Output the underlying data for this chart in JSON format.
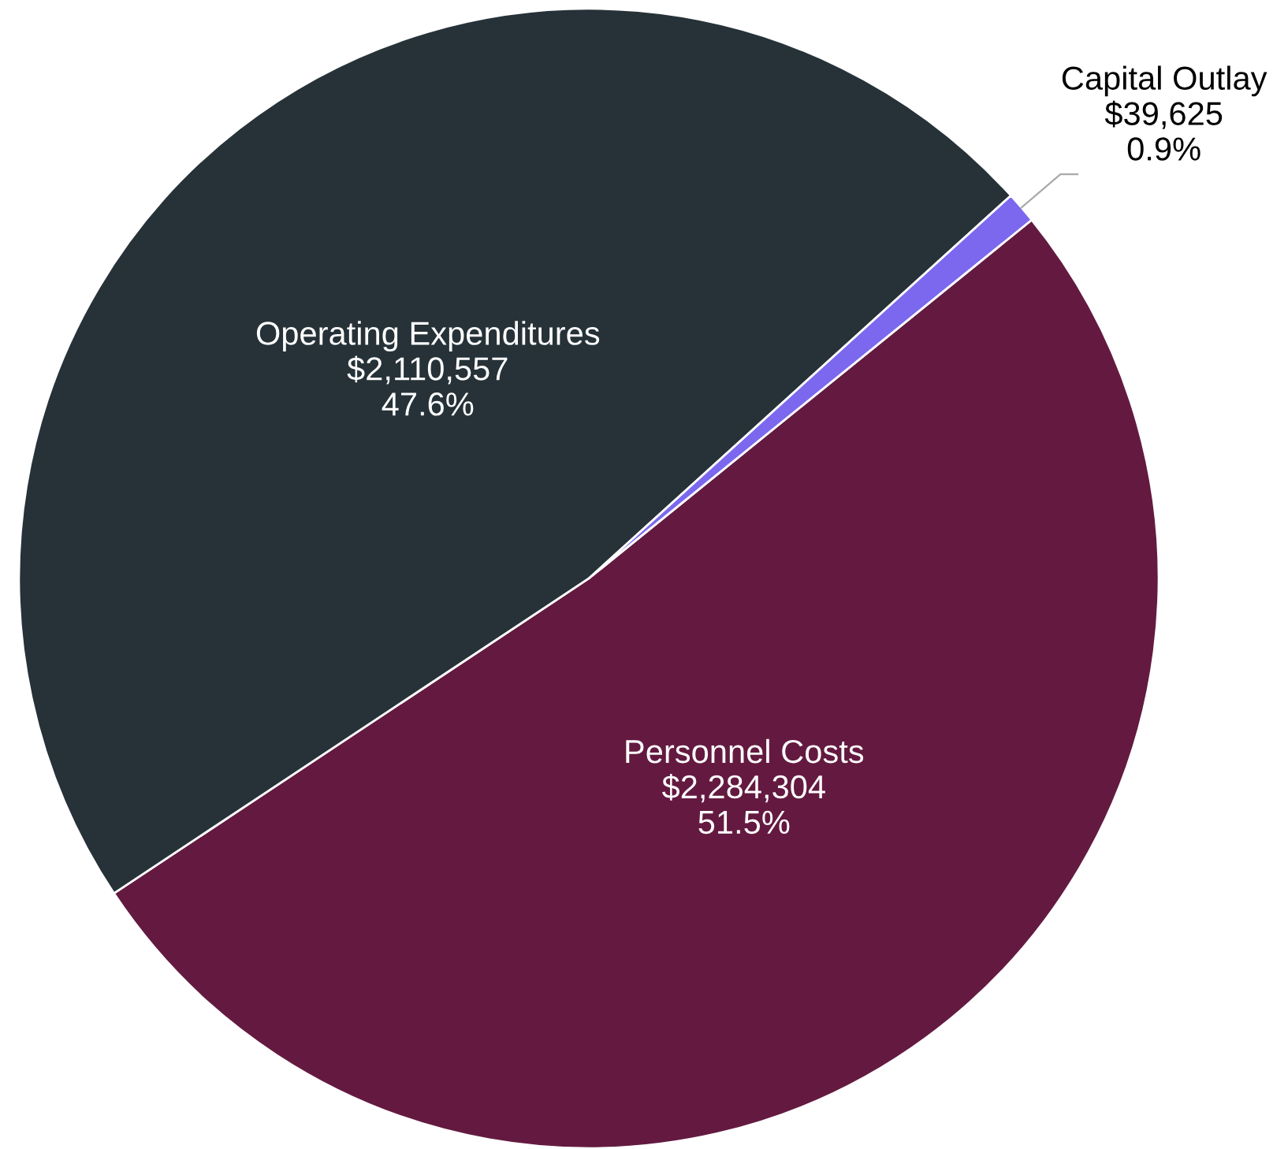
{
  "chart_data": {
    "type": "pie",
    "categories": [
      "Personnel Costs",
      "Operating Expenditures",
      "Capital Outlay"
    ],
    "values": [
      2284304,
      2110557,
      39625
    ],
    "value_labels": [
      "$2,284,304\n51.5%",
      "$2,110,557\n47.6%",
      "$39,625\n0.9%"
    ],
    "colors": [
      "#641a40",
      "#263238",
      "#7b68ee"
    ],
    "legend": false
  }
}
